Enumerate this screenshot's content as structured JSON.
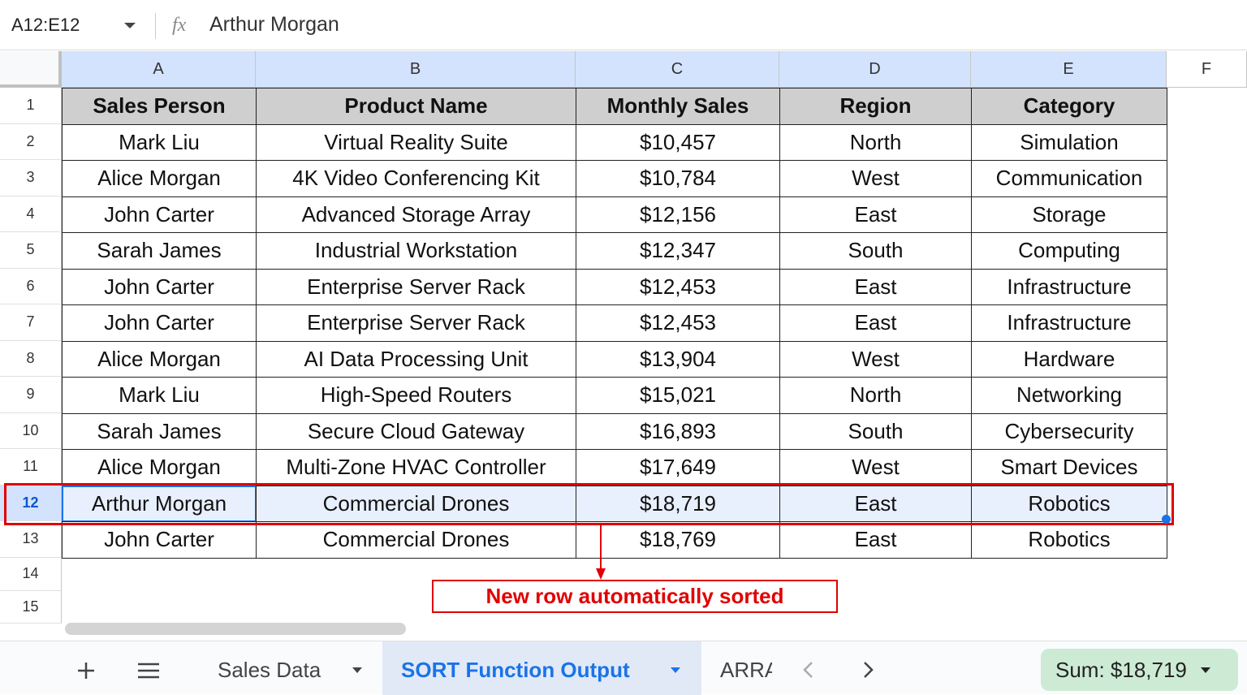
{
  "formula_bar": {
    "cell_ref": "A12:E12",
    "icon": "fx",
    "formula": "Arthur Morgan"
  },
  "columns": [
    "A",
    "B",
    "C",
    "D",
    "E",
    "F"
  ],
  "row_numbers": [
    1,
    2,
    3,
    4,
    5,
    6,
    7,
    8,
    9,
    10,
    11,
    12,
    13,
    14,
    15
  ],
  "table": {
    "header": [
      "Sales Person",
      "Product Name",
      "Monthly Sales",
      "Region",
      "Category"
    ],
    "rows": [
      [
        "Mark Liu",
        "Virtual Reality Suite",
        "$10,457",
        "North",
        "Simulation"
      ],
      [
        "Alice Morgan",
        "4K Video Conferencing Kit",
        "$10,784",
        "West",
        "Communication"
      ],
      [
        "John Carter",
        "Advanced Storage Array",
        "$12,156",
        "East",
        "Storage"
      ],
      [
        "Sarah James",
        "Industrial Workstation",
        "$12,347",
        "South",
        "Computing"
      ],
      [
        "John Carter",
        "Enterprise Server Rack",
        "$12,453",
        "East",
        "Infrastructure"
      ],
      [
        "John Carter",
        "Enterprise Server Rack",
        "$12,453",
        "East",
        "Infrastructure"
      ],
      [
        "Alice Morgan",
        "AI Data Processing Unit",
        "$13,904",
        "West",
        "Hardware"
      ],
      [
        "Mark Liu",
        "High-Speed Routers",
        "$15,021",
        "North",
        "Networking"
      ],
      [
        "Sarah James",
        "Secure Cloud Gateway",
        "$16,893",
        "South",
        "Cybersecurity"
      ],
      [
        "Alice Morgan",
        "Multi-Zone HVAC Controller",
        "$17,649",
        "West",
        "Smart Devices"
      ],
      [
        "Arthur Morgan",
        "Commercial Drones",
        "$18,719",
        "East",
        "Robotics"
      ],
      [
        "John Carter",
        "Commercial Drones",
        "$18,769",
        "East",
        "Robotics"
      ]
    ]
  },
  "annotation": "New row automatically sorted",
  "sheet_tabs": [
    "Sales Data",
    "SORT Function Output",
    "ARRA"
  ],
  "status": "Sum: $18,719"
}
